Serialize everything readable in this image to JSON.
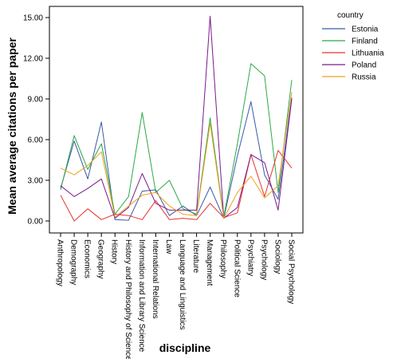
{
  "chart_data": {
    "type": "line",
    "xlabel": "discipline",
    "ylabel": "Mean average citations per paper",
    "ylim": [
      0,
      15
    ],
    "yticks": [
      "0.00",
      "3.00",
      "6.00",
      "9.00",
      "12.00",
      "15.00"
    ],
    "ytick_values": [
      0,
      3,
      6,
      9,
      12,
      15
    ],
    "grid": false,
    "legend": {
      "title": "country",
      "placement": "top-right"
    },
    "categories": [
      "Anthropology",
      "Demography",
      "Economics",
      "Geography",
      "History",
      "History and Philosophy of Science",
      "Information and Library Science",
      "International Relations",
      "Law",
      "Language and Linguistics",
      "Literature",
      "Management",
      "Philosophy",
      "Political Science",
      "Psychiatry",
      "Psychology",
      "Sociology",
      "Social Psychology"
    ],
    "series": [
      {
        "name": "Estonia",
        "color": "#3b5aa6",
        "values": [
          2.4,
          5.9,
          3.1,
          7.3,
          0.1,
          0.05,
          2.2,
          2.3,
          0.4,
          1.1,
          0.4,
          2.5,
          0.2,
          4.8,
          8.8,
          3.4,
          1.6,
          9.1
        ]
      },
      {
        "name": "Finland",
        "color": "#2ca84a",
        "values": [
          2.3,
          6.3,
          3.8,
          5.7,
          0.5,
          1.8,
          8.0,
          2.1,
          3.0,
          0.9,
          0.5,
          7.6,
          0.3,
          5.7,
          11.6,
          10.7,
          2.1,
          10.4
        ]
      },
      {
        "name": "Lithuania",
        "color": "#e8332b",
        "values": [
          1.9,
          0.0,
          0.9,
          0.1,
          0.5,
          0.4,
          0.1,
          1.5,
          0.1,
          0.2,
          0.1,
          1.3,
          0.25,
          0.6,
          4.9,
          1.8,
          5.2,
          3.9
        ]
      },
      {
        "name": "Poland",
        "color": "#7b1a8c",
        "values": [
          2.6,
          1.8,
          2.4,
          3.1,
          0.2,
          1.0,
          3.5,
          1.3,
          0.8,
          0.8,
          0.8,
          15.1,
          0.2,
          1.0,
          4.9,
          4.3,
          0.8,
          9.0
        ]
      },
      {
        "name": "Russia",
        "color": "#f0a01c",
        "values": [
          3.9,
          3.4,
          4.1,
          5.1,
          0.3,
          1.1,
          1.9,
          2.1,
          1.1,
          0.5,
          0.4,
          7.2,
          0.2,
          2.1,
          3.3,
          1.7,
          2.6,
          9.5
        ]
      }
    ]
  }
}
